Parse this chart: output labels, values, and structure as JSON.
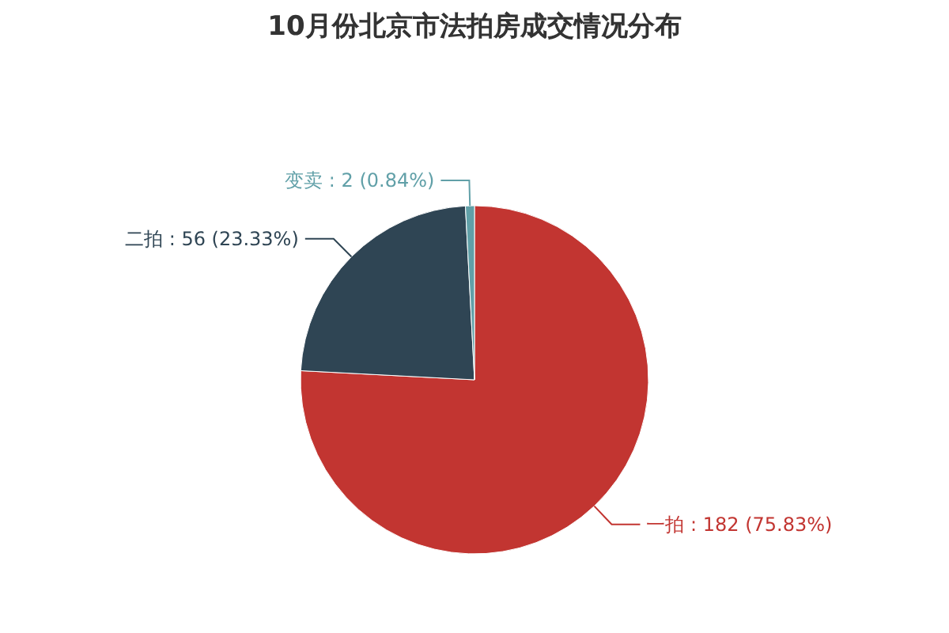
{
  "chart_data": {
    "type": "pie",
    "title": "10月份北京市法拍房成交情况分布",
    "categories": [
      "一拍",
      "二拍",
      "变卖"
    ],
    "values": [
      182,
      56,
      2
    ],
    "colors": [
      "#c23531",
      "#2f4554",
      "#61a0a8"
    ],
    "value_labels": [
      "182 (75.83%)",
      "56 (23.33%)",
      "2 (0.84%)"
    ]
  }
}
